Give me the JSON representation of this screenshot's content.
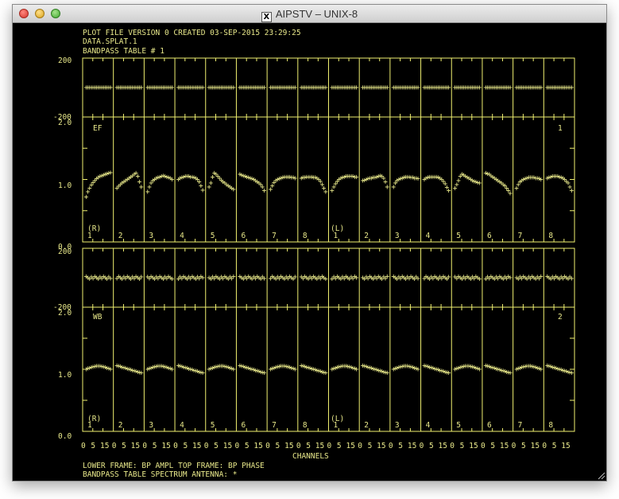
{
  "window": {
    "title": "AIPSTV – UNIX-8",
    "x_glyph": "X"
  },
  "plot": {
    "header": [
      "PLOT FILE VERSION 0  CREATED 03-SEP-2015 23:29:25",
      "DATA.SPLAT.1",
      "BANDPASS TABLE # 1"
    ],
    "footer": [
      "LOWER FRAME: BP AMPL   TOP FRAME: BP PHASE",
      "BANDPASS TABLE SPECTRUM     ANTENNA: *"
    ],
    "xlabel": "CHANNELS",
    "x_tick_labels": [
      "0",
      "5",
      "15",
      "0",
      "5",
      "15",
      "0",
      "5",
      "15",
      "0",
      "5",
      "15",
      "0",
      "5",
      "15",
      "0",
      "5",
      "15",
      "0",
      "5",
      "15",
      "0",
      "5",
      "15",
      "0",
      "5",
      "15",
      "0",
      "5",
      "15",
      "0",
      "5",
      "15",
      "0",
      "5",
      "15",
      "0",
      "5",
      "15",
      "0",
      "5",
      "15",
      "0",
      "5",
      "15",
      "0",
      "5",
      "15",
      "0",
      "5",
      "15",
      "0",
      "5",
      "15",
      "0",
      "5",
      "15",
      "0",
      "5",
      "15",
      "0",
      "5",
      "15",
      "0",
      "5",
      "15"
    ],
    "panels": [
      {
        "antenna_label": "EF",
        "antenna_number": "1",
        "phase_axis_labels": [
          "200",
          "-200"
        ],
        "amp_axis_labels": [
          "2.0",
          "1.0",
          "0.0"
        ],
        "pol_labels": [
          "(R)",
          "(L)"
        ],
        "if_labels": [
          "1",
          "2",
          "3",
          "4",
          "5",
          "6",
          "7",
          "8",
          "1",
          "2",
          "3",
          "4",
          "5",
          "6",
          "7",
          "8"
        ]
      },
      {
        "antenna_label": "WB",
        "antenna_number": "2",
        "phase_axis_labels": [
          "200",
          "-200"
        ],
        "amp_axis_labels": [
          "2.0",
          "1.0",
          "0.0"
        ],
        "pol_labels": [
          "(R)",
          "(L)"
        ],
        "if_labels": [
          "1",
          "2",
          "3",
          "4",
          "5",
          "6",
          "7",
          "8",
          "1",
          "2",
          "3",
          "4",
          "5",
          "6",
          "7",
          "8"
        ]
      }
    ],
    "chart_data": {
      "type": "scatter",
      "title": "",
      "xlabel": "CHANNELS",
      "ylabel": "",
      "subplots": [
        {
          "antenna": "EF",
          "frame": "phase",
          "ylim": [
            -200,
            200
          ],
          "phase_value": 0
        },
        {
          "antenna": "EF",
          "frame": "amplitude",
          "ylim": [
            0,
            2
          ],
          "if_amplitude_shapes": [
            {
              "pol": "R",
              "if": 1,
              "values": [
                0.72,
                0.8,
                0.86,
                0.91,
                0.95,
                0.98,
                1.01,
                1.03,
                1.05,
                1.06,
                1.07,
                1.08,
                1.09,
                1.1,
                1.11
              ]
            },
            {
              "pol": "R",
              "if": 2,
              "values": [
                0.86,
                0.89,
                0.92,
                0.94,
                0.96,
                0.98,
                1.0,
                1.02,
                1.04,
                1.06,
                1.08,
                1.1,
                1.05,
                0.96,
                0.88
              ]
            },
            {
              "pol": "R",
              "if": 3,
              "values": [
                0.8,
                0.88,
                0.94,
                0.98,
                1.0,
                1.02,
                1.03,
                1.04,
                1.05,
                1.06,
                1.05,
                1.04,
                1.03,
                1.02,
                1.0
              ]
            },
            {
              "pol": "R",
              "if": 4,
              "values": [
                1.0,
                1.02,
                1.03,
                1.04,
                1.05,
                1.05,
                1.05,
                1.04,
                1.04,
                1.03,
                1.02,
                1.0,
                0.96,
                0.9,
                0.83
              ]
            },
            {
              "pol": "R",
              "if": 5,
              "values": [
                0.88,
                0.94,
                1.04,
                1.1,
                1.08,
                1.05,
                1.02,
                0.99,
                0.96,
                0.94,
                0.92,
                0.9,
                0.88,
                0.86,
                0.84
              ]
            },
            {
              "pol": "R",
              "if": 6,
              "values": [
                1.08,
                1.07,
                1.06,
                1.05,
                1.04,
                1.03,
                1.02,
                1.01,
                1.0,
                0.98,
                0.96,
                0.94,
                0.92,
                0.88,
                0.82
              ]
            },
            {
              "pol": "R",
              "if": 7,
              "values": [
                0.84,
                0.9,
                0.95,
                0.98,
                1.0,
                1.01,
                1.02,
                1.03,
                1.04,
                1.04,
                1.04,
                1.04,
                1.03,
                1.03,
                1.02
              ]
            },
            {
              "pol": "R",
              "if": 8,
              "values": [
                1.02,
                1.03,
                1.03,
                1.04,
                1.04,
                1.04,
                1.04,
                1.03,
                1.03,
                1.02,
                1.0,
                0.97,
                0.92,
                0.86,
                0.8
              ]
            },
            {
              "pol": "L",
              "if": 1,
              "values": [
                0.82,
                0.88,
                0.93,
                0.97,
                1.0,
                1.02,
                1.03,
                1.04,
                1.05,
                1.05,
                1.05,
                1.05,
                1.05,
                1.04,
                1.04
              ]
            },
            {
              "pol": "L",
              "if": 2,
              "values": [
                0.98,
                0.99,
                1.0,
                1.01,
                1.02,
                1.02,
                1.03,
                1.03,
                1.04,
                1.05,
                1.06,
                1.05,
                1.02,
                0.96,
                0.88
              ]
            },
            {
              "pol": "L",
              "if": 3,
              "values": [
                0.88,
                0.94,
                0.98,
                1.0,
                1.01,
                1.02,
                1.03,
                1.04,
                1.04,
                1.04,
                1.03,
                1.03,
                1.02,
                1.02,
                1.01
              ]
            },
            {
              "pol": "L",
              "if": 4,
              "values": [
                1.0,
                1.02,
                1.03,
                1.04,
                1.04,
                1.04,
                1.04,
                1.04,
                1.03,
                1.02,
                1.0,
                0.97,
                0.93,
                0.87,
                0.82
              ]
            },
            {
              "pol": "L",
              "if": 5,
              "values": [
                0.86,
                0.92,
                0.98,
                1.05,
                1.08,
                1.07,
                1.05,
                1.03,
                1.02,
                1.0,
                0.98,
                0.97,
                0.96,
                0.95,
                0.94
              ]
            },
            {
              "pol": "L",
              "if": 6,
              "values": [
                1.1,
                1.09,
                1.08,
                1.06,
                1.04,
                1.02,
                1.0,
                0.98,
                0.96,
                0.94,
                0.92,
                0.9,
                0.86,
                0.82,
                0.78
              ]
            },
            {
              "pol": "L",
              "if": 7,
              "values": [
                0.86,
                0.92,
                0.96,
                0.98,
                1.0,
                1.01,
                1.02,
                1.03,
                1.03,
                1.03,
                1.03,
                1.02,
                1.02,
                1.01,
                1.0
              ]
            },
            {
              "pol": "L",
              "if": 8,
              "values": [
                1.02,
                1.03,
                1.04,
                1.05,
                1.05,
                1.05,
                1.05,
                1.04,
                1.03,
                1.02,
                1.0,
                0.97,
                0.94,
                0.88,
                0.82
              ]
            }
          ]
        },
        {
          "antenna": "WB",
          "frame": "phase",
          "ylim": [
            -200,
            200
          ],
          "phase_value": 0
        },
        {
          "antenna": "WB",
          "frame": "amplitude",
          "ylim": [
            0,
            2
          ],
          "typical_value": 1.0
        }
      ]
    }
  },
  "colors": {
    "frame": "#f0f070",
    "text": "#e8e88a",
    "points": "#38d8f8",
    "points_alt": "#9a9cff",
    "background": "#000000"
  }
}
